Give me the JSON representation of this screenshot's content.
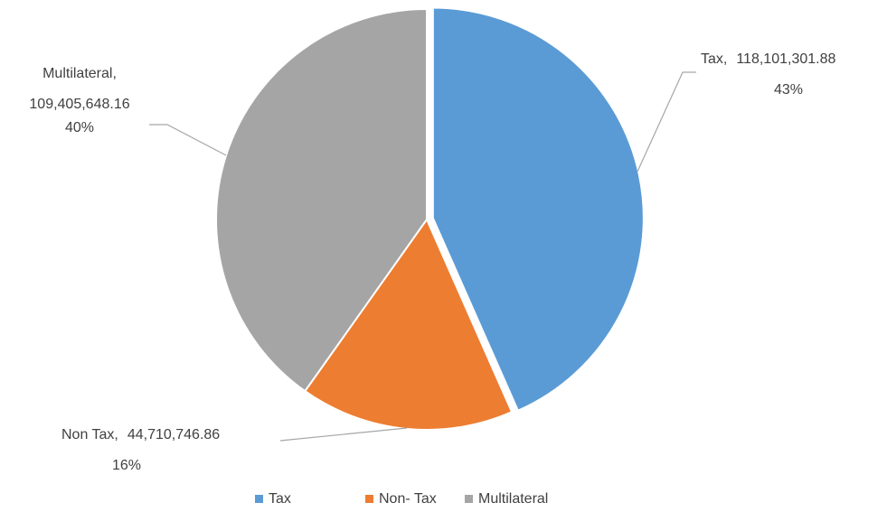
{
  "chart_data": {
    "type": "pie",
    "categories": [
      "Tax",
      "Non- Tax",
      "Multilateral"
    ],
    "values": [
      118101301.88,
      44710746.86,
      109405648.16
    ],
    "value_labels": [
      "118,101,301.88",
      "44,710,746.86",
      "109,405,648.16"
    ],
    "label_names": [
      "Tax,",
      "Non Tax,",
      "Multilateral,"
    ],
    "percents": [
      43,
      16,
      40
    ],
    "percent_labels": [
      "43%",
      "16%",
      "40%"
    ],
    "colors": [
      "#5b9bd5",
      "#ed7d31",
      "#a5a5a5"
    ],
    "exploded": [
      true,
      false,
      false
    ],
    "legend": "bottom"
  }
}
